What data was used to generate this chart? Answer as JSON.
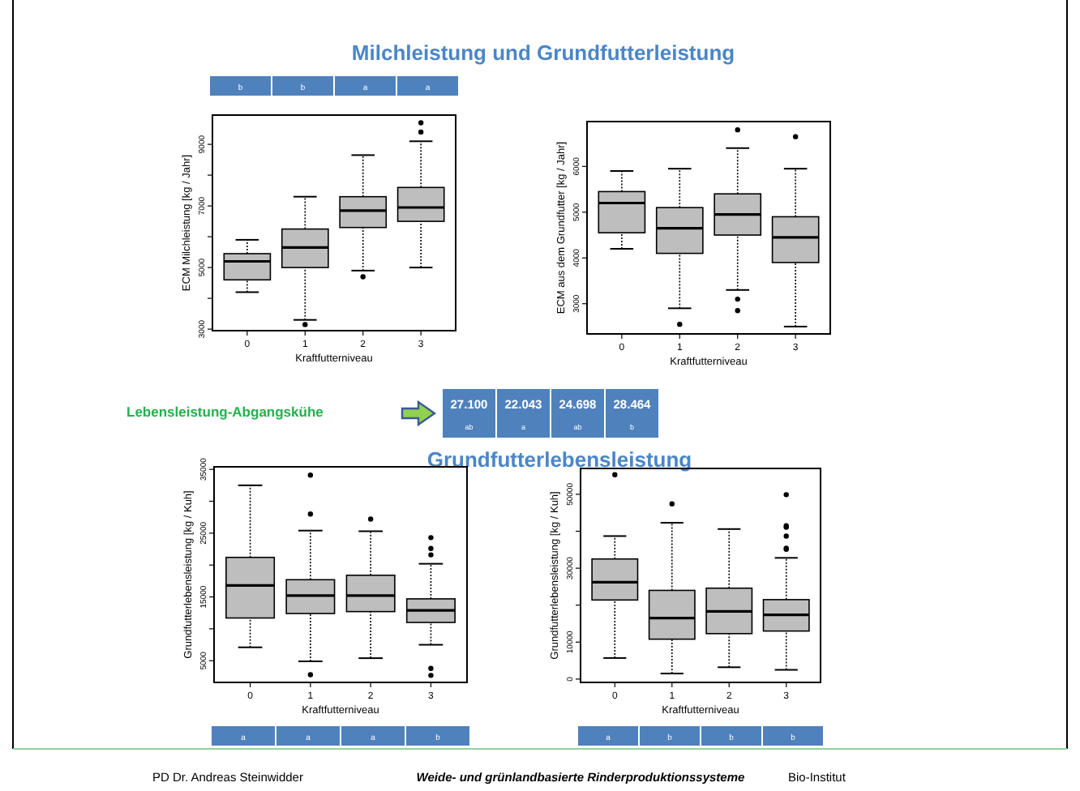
{
  "chart_data": [
    {
      "type": "other",
      "title": "Milchleistung und Grundfutterleistung",
      "annotations": [
        "PD Dr. Andreas Steinwidder",
        "Weide- und grünlandbasierte Rinderproduktionssysteme",
        "Bio-Institut"
      ]
    },
    {
      "type": "box",
      "categories": [
        "0",
        "1",
        "2",
        "3"
      ],
      "xlabel": "Kraftfutterniveau",
      "ylabel": "ECM Milchleistung [kg / Jahr]",
      "color": "#bebebe",
      "ylim": [
        2950,
        9950
      ],
      "yticks": [
        3000,
        {
          "value": 4000,
          "label": null
        },
        5000,
        {
          "value": 6000,
          "label": null
        },
        7000,
        {
          "value": 8000,
          "label": null
        },
        9000
      ],
      "annotations": [
        "b",
        "b",
        "a",
        "a"
      ],
      "boxes": [
        {
          "low": 4200,
          "q1": 4600,
          "median": 5200,
          "q3": 5450,
          "high": 5900
        },
        {
          "low": 3300,
          "q1": 5000,
          "median": 5650,
          "q3": 6250,
          "high": 7300,
          "outliers": [
            3150
          ]
        },
        {
          "low": 4900,
          "q1": 6300,
          "median": 6850,
          "q3": 7300,
          "high": 8650,
          "outliers": [
            4700
          ]
        },
        {
          "low": 5000,
          "q1": 6500,
          "median": 6950,
          "q3": 7600,
          "high": 9100,
          "outliers": [
            9400,
            9700
          ]
        }
      ]
    },
    {
      "type": "box",
      "categories": [
        "0",
        "1",
        "2",
        "3"
      ],
      "xlabel": "Kraftfutterniveau",
      "ylabel": "ECM aus dem Grundfutter [kg / Jahr]",
      "color": "#bebebe",
      "ylim": [
        2340,
        6980
      ],
      "yticks": [
        3000,
        4000,
        5000,
        6000
      ],
      "boxes": [
        {
          "low": 4200,
          "q1": 4550,
          "median": 5200,
          "q3": 5450,
          "high": 5900
        },
        {
          "low": 2900,
          "q1": 4100,
          "median": 4650,
          "q3": 5100,
          "high": 5950,
          "outliers": [
            2550
          ]
        },
        {
          "low": 3300,
          "q1": 4500,
          "median": 4950,
          "q3": 5400,
          "high": 6400,
          "outliers": [
            3100,
            2850,
            6800
          ]
        },
        {
          "low": 2500,
          "q1": 3900,
          "median": 4450,
          "q3": 4900,
          "high": 5950,
          "outliers": [
            6650
          ]
        }
      ]
    },
    {
      "type": "other",
      "title": "Lebensleistung-Abgangskühe",
      "subtitle": "Grundfutterlebensleistung",
      "annotations": [
        "27.100",
        "ab",
        "22.043",
        "a",
        "24.698",
        "ab",
        "28.464",
        "b"
      ]
    },
    {
      "type": "box",
      "categories": [
        "0",
        "1",
        "2",
        "3"
      ],
      "xlabel": "Kraftfutterniveau",
      "ylabel": "Grundfutterlebensleistung [kg / Kuh]",
      "color": "#bebebe",
      "ylim": [
        1600,
        35400
      ],
      "yticks": [
        5000,
        {
          "value": 10000,
          "label": null
        },
        15000,
        {
          "value": 20000,
          "label": null
        },
        25000,
        {
          "value": 30000,
          "label": null
        },
        35000
      ],
      "annotations": [
        "a",
        "a",
        "a",
        "b"
      ],
      "boxes": [
        {
          "low": 7100,
          "q1": 11700,
          "median": 16800,
          "q3": 21200,
          "high": 32500
        },
        {
          "low": 4900,
          "q1": 12400,
          "median": 15200,
          "q3": 17700,
          "high": 25400,
          "outliers": [
            2800,
            28000,
            34100
          ]
        },
        {
          "low": 5400,
          "q1": 12700,
          "median": 15200,
          "q3": 18400,
          "high": 25300,
          "outliers": [
            27200
          ]
        },
        {
          "low": 7500,
          "q1": 11000,
          "median": 12900,
          "q3": 14700,
          "high": 20200,
          "outliers": [
            2700,
            3800,
            21600,
            22600,
            24300
          ]
        }
      ]
    },
    {
      "type": "box",
      "categories": [
        "0",
        "1",
        "2",
        "3"
      ],
      "xlabel": "Kraftfutterniveau",
      "ylabel": "Grundfutterlebensleistung [kg / Kuh]",
      "color": "#bebebe",
      "ylim": [
        -900,
        57000
      ],
      "yticks": [
        0,
        {
          "value": 10000,
          "label": "10000"
        },
        {
          "value": 20000,
          "label": null
        },
        30000,
        {
          "value": 40000,
          "label": null
        },
        50000
      ],
      "annotations": [
        "a",
        "b",
        "b",
        "b"
      ],
      "boxes": [
        {
          "low": 5700,
          "q1": 21400,
          "median": 26200,
          "q3": 32500,
          "high": 38700,
          "outliers": [
            55300
          ]
        },
        {
          "low": 1500,
          "q1": 10800,
          "median": 16500,
          "q3": 24000,
          "high": 42300,
          "outliers": [
            47400
          ]
        },
        {
          "low": 3200,
          "q1": 12300,
          "median": 18300,
          "q3": 24600,
          "high": 40600
        },
        {
          "low": 2500,
          "q1": 13000,
          "median": 17400,
          "q3": 21500,
          "high": 32800,
          "outliers": [
            35100,
            35400,
            38700,
            41100,
            41500,
            49900
          ]
        }
      ]
    }
  ]
}
